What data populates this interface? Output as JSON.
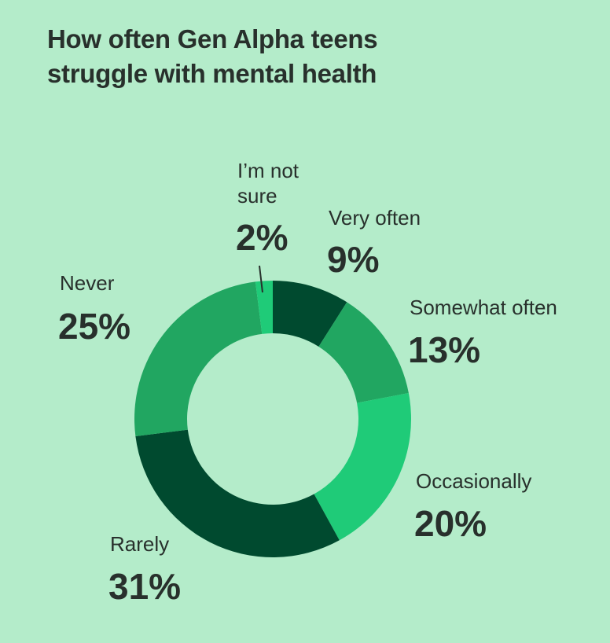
{
  "title_line1": "How often Gen Alpha teens",
  "title_line2": "struggle with mental health",
  "chart_data": {
    "type": "pie",
    "title": "How often Gen Alpha teens struggle with mental health",
    "slices": [
      {
        "label": "Very often",
        "value": 9,
        "pct_label": "9%",
        "color": "#004a2f"
      },
      {
        "label": "Somewhat often",
        "value": 13,
        "pct_label": "13%",
        "color": "#21a661"
      },
      {
        "label": "Occasionally",
        "value": 20,
        "pct_label": "20%",
        "color": "#1fcb78"
      },
      {
        "label": "Rarely",
        "value": 31,
        "pct_label": "31%",
        "color": "#004a2f"
      },
      {
        "label": "Never",
        "value": 25,
        "pct_label": "25%",
        "color": "#21a661"
      },
      {
        "label": "I’m not sure",
        "label_lines": [
          "I’m not",
          "sure"
        ],
        "value": 2,
        "pct_label": "2%",
        "color": "#1fcb78"
      }
    ]
  }
}
